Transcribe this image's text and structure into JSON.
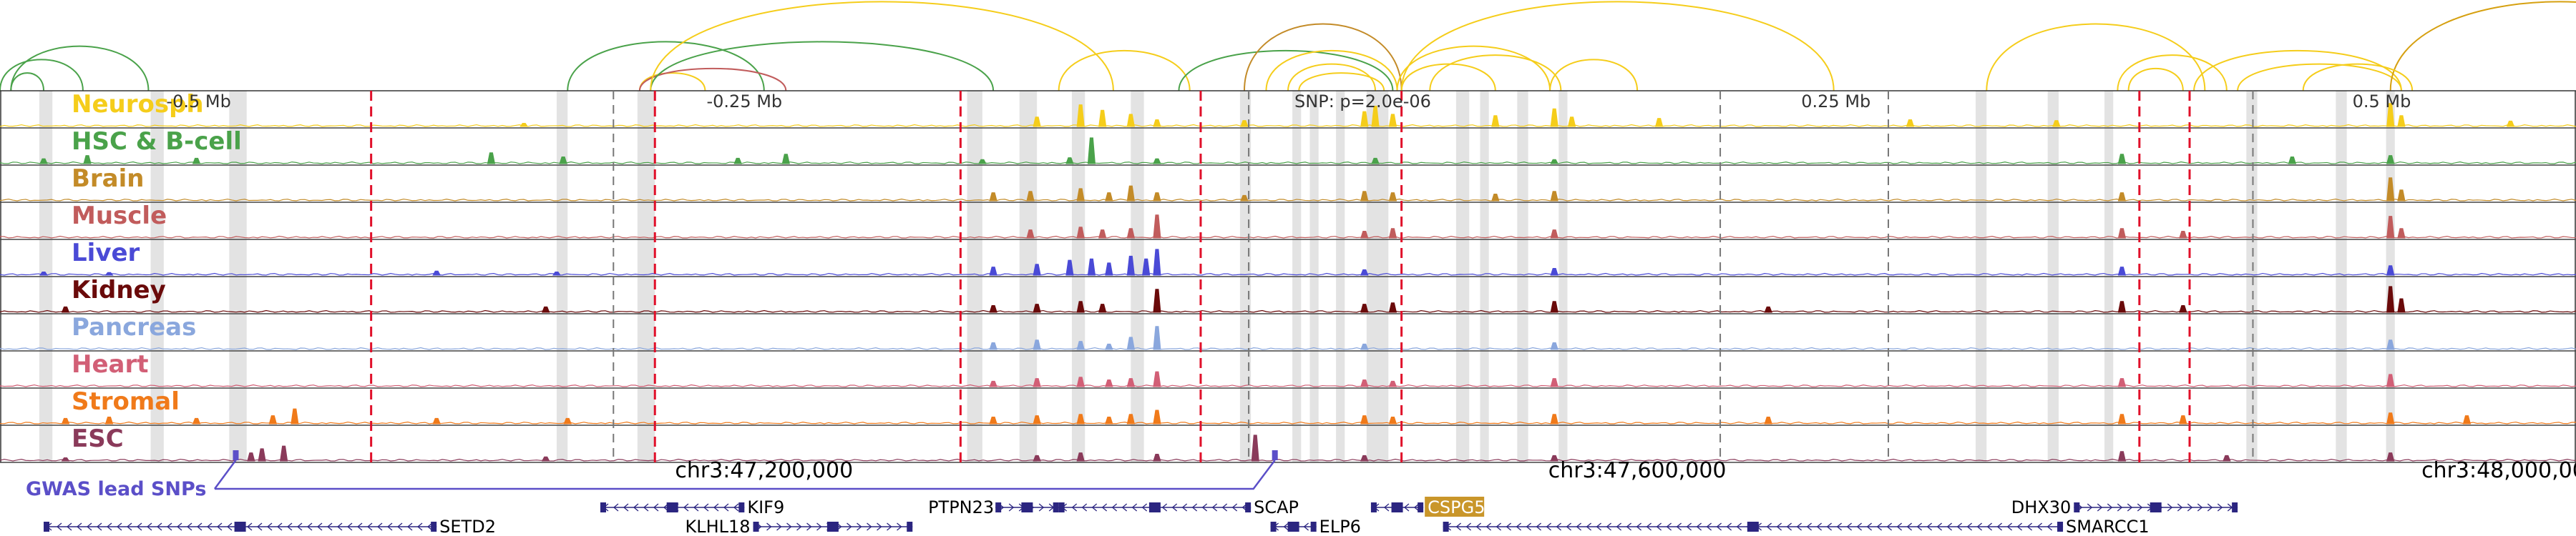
{
  "chart_data": {
    "type": "genome-browser",
    "title": "",
    "chromosome": "chr3",
    "x_range_bp": [
      46850000,
      48030000
    ],
    "x_unit": "bp",
    "center_snp": {
      "label": "SNP: p=2.0e-06",
      "position_bp": 47441000
    },
    "relative_ticks": [
      {
        "label": "-0.5 Mb",
        "position_bp": 46941000
      },
      {
        "label": "-0.25 Mb",
        "position_bp": 47191000
      },
      {
        "label": "0.25 Mb",
        "position_bp": 47691000
      },
      {
        "label": "0.5 Mb",
        "position_bp": 47941000
      }
    ],
    "coordinate_labels": [
      {
        "label": "chr3:47,200,000",
        "position_bp": 47200000
      },
      {
        "label": "chr3:47,600,000",
        "position_bp": 47600000
      },
      {
        "label": "chr3:48,000,000",
        "position_bp": 48000000
      }
    ],
    "tracks": [
      {
        "name": "Neurosph",
        "color": "#f5cd1b",
        "peaks": [
          [
            47090000,
            0.12
          ],
          [
            47325000,
            0.35
          ],
          [
            47345000,
            0.8
          ],
          [
            47355000,
            0.6
          ],
          [
            47368000,
            0.45
          ],
          [
            47380000,
            0.25
          ],
          [
            47420000,
            0.22
          ],
          [
            47475000,
            0.55
          ],
          [
            47480000,
            0.75
          ],
          [
            47488000,
            0.45
          ],
          [
            47535000,
            0.4
          ],
          [
            47562000,
            0.65
          ],
          [
            47570000,
            0.35
          ],
          [
            47610000,
            0.3
          ],
          [
            47725000,
            0.25
          ],
          [
            47792000,
            0.22
          ],
          [
            47945000,
            0.85
          ],
          [
            47950000,
            0.4
          ],
          [
            48000000,
            0.2
          ]
        ]
      },
      {
        "name": "HSC & B-cell",
        "color": "#4aa24a",
        "peaks": [
          [
            46870000,
            0.18
          ],
          [
            46890000,
            0.3
          ],
          [
            46940000,
            0.2
          ],
          [
            47075000,
            0.4
          ],
          [
            47108000,
            0.25
          ],
          [
            47188000,
            0.2
          ],
          [
            47210000,
            0.35
          ],
          [
            47300000,
            0.15
          ],
          [
            47340000,
            0.22
          ],
          [
            47350000,
            0.95
          ],
          [
            47380000,
            0.18
          ],
          [
            47480000,
            0.2
          ],
          [
            47562000,
            0.15
          ],
          [
            47822000,
            0.35
          ],
          [
            47900000,
            0.25
          ],
          [
            47945000,
            0.3
          ]
        ]
      },
      {
        "name": "Brain",
        "color": "#c38b28",
        "peaks": [
          [
            47305000,
            0.3
          ],
          [
            47322000,
            0.35
          ],
          [
            47345000,
            0.45
          ],
          [
            47358000,
            0.3
          ],
          [
            47368000,
            0.55
          ],
          [
            47380000,
            0.3
          ],
          [
            47420000,
            0.2
          ],
          [
            47475000,
            0.35
          ],
          [
            47488000,
            0.3
          ],
          [
            47535000,
            0.25
          ],
          [
            47562000,
            0.35
          ],
          [
            47822000,
            0.3
          ],
          [
            47945000,
            0.85
          ],
          [
            47950000,
            0.4
          ]
        ]
      },
      {
        "name": "Muscle",
        "color": "#c15c5c",
        "peaks": [
          [
            47322000,
            0.3
          ],
          [
            47345000,
            0.4
          ],
          [
            47355000,
            0.3
          ],
          [
            47368000,
            0.35
          ],
          [
            47380000,
            0.85
          ],
          [
            47475000,
            0.25
          ],
          [
            47488000,
            0.35
          ],
          [
            47562000,
            0.3
          ],
          [
            47822000,
            0.35
          ],
          [
            47850000,
            0.25
          ],
          [
            47945000,
            0.8
          ],
          [
            47950000,
            0.35
          ]
        ]
      },
      {
        "name": "Liver",
        "color": "#4a4ad6",
        "peaks": [
          [
            46870000,
            0.12
          ],
          [
            46900000,
            0.1
          ],
          [
            47050000,
            0.15
          ],
          [
            47105000,
            0.12
          ],
          [
            47305000,
            0.3
          ],
          [
            47325000,
            0.4
          ],
          [
            47340000,
            0.55
          ],
          [
            47350000,
            0.6
          ],
          [
            47358000,
            0.45
          ],
          [
            47368000,
            0.7
          ],
          [
            47375000,
            0.6
          ],
          [
            47380000,
            0.95
          ],
          [
            47475000,
            0.2
          ],
          [
            47562000,
            0.25
          ],
          [
            47822000,
            0.3
          ],
          [
            47945000,
            0.35
          ]
        ]
      },
      {
        "name": "Kidney",
        "color": "#6a0a0a",
        "peaks": [
          [
            46880000,
            0.2
          ],
          [
            47100000,
            0.2
          ],
          [
            47305000,
            0.25
          ],
          [
            47325000,
            0.3
          ],
          [
            47345000,
            0.4
          ],
          [
            47355000,
            0.3
          ],
          [
            47380000,
            0.85
          ],
          [
            47475000,
            0.3
          ],
          [
            47488000,
            0.35
          ],
          [
            47562000,
            0.4
          ],
          [
            47660000,
            0.2
          ],
          [
            47822000,
            0.4
          ],
          [
            47850000,
            0.25
          ],
          [
            47945000,
            0.95
          ],
          [
            47950000,
            0.5
          ]
        ]
      },
      {
        "name": "Pancreas",
        "color": "#8aa7dd",
        "peaks": [
          [
            47305000,
            0.25
          ],
          [
            47325000,
            0.35
          ],
          [
            47345000,
            0.3
          ],
          [
            47358000,
            0.2
          ],
          [
            47368000,
            0.45
          ],
          [
            47380000,
            0.85
          ],
          [
            47475000,
            0.2
          ],
          [
            47562000,
            0.25
          ],
          [
            47945000,
            0.35
          ]
        ]
      },
      {
        "name": "Heart",
        "color": "#d25f76",
        "peaks": [
          [
            47305000,
            0.2
          ],
          [
            47325000,
            0.3
          ],
          [
            47345000,
            0.35
          ],
          [
            47358000,
            0.25
          ],
          [
            47368000,
            0.3
          ],
          [
            47380000,
            0.55
          ],
          [
            47475000,
            0.25
          ],
          [
            47488000,
            0.2
          ],
          [
            47562000,
            0.3
          ],
          [
            47822000,
            0.3
          ],
          [
            47945000,
            0.45
          ]
        ]
      },
      {
        "name": "Stromal",
        "color": "#f07a1a",
        "peaks": [
          [
            46880000,
            0.2
          ],
          [
            46900000,
            0.25
          ],
          [
            46940000,
            0.2
          ],
          [
            46975000,
            0.3
          ],
          [
            46985000,
            0.55
          ],
          [
            47050000,
            0.2
          ],
          [
            47110000,
            0.2
          ],
          [
            47305000,
            0.25
          ],
          [
            47325000,
            0.3
          ],
          [
            47345000,
            0.35
          ],
          [
            47358000,
            0.25
          ],
          [
            47368000,
            0.35
          ],
          [
            47380000,
            0.5
          ],
          [
            47475000,
            0.3
          ],
          [
            47488000,
            0.25
          ],
          [
            47562000,
            0.35
          ],
          [
            47660000,
            0.25
          ],
          [
            47822000,
            0.35
          ],
          [
            47850000,
            0.3
          ],
          [
            47945000,
            0.4
          ],
          [
            47980000,
            0.3
          ]
        ]
      },
      {
        "name": "ESC",
        "color": "#8a3a5a",
        "peaks": [
          [
            46880000,
            0.12
          ],
          [
            46965000,
            0.3
          ],
          [
            46970000,
            0.45
          ],
          [
            46980000,
            0.55
          ],
          [
            47100000,
            0.15
          ],
          [
            47325000,
            0.2
          ],
          [
            47345000,
            0.3
          ],
          [
            47380000,
            0.25
          ],
          [
            47425000,
            0.95
          ],
          [
            47475000,
            0.2
          ],
          [
            47562000,
            0.2
          ],
          [
            47822000,
            0.35
          ],
          [
            47870000,
            0.2
          ],
          [
            47945000,
            0.3
          ]
        ]
      }
    ],
    "red_dashed_lines_bp": [
      47020000,
      47150000,
      47290000,
      47400000,
      47492000,
      47830000,
      47853000
    ],
    "gray_dashed_lines_bp": [
      47131000,
      47422000,
      47638000,
      47715000,
      47882000
    ],
    "highlight_regions_bp": [
      [
        46868000,
        46874000
      ],
      [
        46919000,
        46925000
      ],
      [
        46955000,
        46963000
      ],
      [
        47105000,
        47110000
      ],
      [
        47142000,
        47150000
      ],
      [
        47293000,
        47300000
      ],
      [
        47317000,
        47325000
      ],
      [
        47341000,
        47347000
      ],
      [
        47368000,
        47374000
      ],
      [
        47418000,
        47423000
      ],
      [
        47442000,
        47446000
      ],
      [
        47450000,
        47454000
      ],
      [
        47462000,
        47466000
      ],
      [
        47476000,
        47486000
      ],
      [
        47517000,
        47523000
      ],
      [
        47528000,
        47532000
      ],
      [
        47545000,
        47550000
      ],
      [
        47564000,
        47568000
      ],
      [
        47755000,
        47760000
      ],
      [
        47788000,
        47793000
      ],
      [
        47814000,
        47818000
      ],
      [
        47879000,
        47884000
      ],
      [
        47920000,
        47925000
      ],
      [
        47943000,
        47947000
      ]
    ],
    "arcs": [
      {
        "start": 46855000,
        "end": 46918000,
        "color": "#4aa24a",
        "height": 0.5
      },
      {
        "start": 46850000,
        "end": 46888000,
        "color": "#4aa24a",
        "height": 0.35
      },
      {
        "start": 46855000,
        "end": 46870000,
        "color": "#4aa24a",
        "height": 0.2
      },
      {
        "start": 47110000,
        "end": 47200000,
        "color": "#4aa24a",
        "height": 0.55
      },
      {
        "start": 47143000,
        "end": 47173000,
        "color": "#f5cd1b",
        "height": 0.2
      },
      {
        "start": 47143000,
        "end": 47210000,
        "color": "#c15c5c",
        "height": 0.25
      },
      {
        "start": 47148000,
        "end": 47305000,
        "color": "#4aa24a",
        "height": 0.55
      },
      {
        "start": 47148000,
        "end": 47360000,
        "color": "#f5cd1b",
        "height": 1.0
      },
      {
        "start": 47335000,
        "end": 47395000,
        "color": "#f5cd1b",
        "height": 0.45
      },
      {
        "start": 47390000,
        "end": 47488000,
        "color": "#4aa24a",
        "height": 0.45
      },
      {
        "start": 47420000,
        "end": 47492000,
        "color": "#c38b28",
        "height": 0.75
      },
      {
        "start": 47430000,
        "end": 47490000,
        "color": "#f5cd1b",
        "height": 0.45
      },
      {
        "start": 47440000,
        "end": 47480000,
        "color": "#f5cd1b",
        "height": 0.3
      },
      {
        "start": 47445000,
        "end": 47484000,
        "color": "#f5cd1b",
        "height": 0.2
      },
      {
        "start": 47490000,
        "end": 47560000,
        "color": "#f5cd1b",
        "height": 0.5
      },
      {
        "start": 47492000,
        "end": 47690000,
        "color": "#f5cd1b",
        "height": 1.0
      },
      {
        "start": 47492000,
        "end": 47535000,
        "color": "#f5cd1b",
        "height": 0.3
      },
      {
        "start": 47505000,
        "end": 47565000,
        "color": "#f5cd1b",
        "height": 0.4
      },
      {
        "start": 47560000,
        "end": 47600000,
        "color": "#f5cd1b",
        "height": 0.35
      },
      {
        "start": 47760000,
        "end": 47860000,
        "color": "#f5cd1b",
        "height": 0.75
      },
      {
        "start": 47820000,
        "end": 47870000,
        "color": "#f5cd1b",
        "height": 0.4
      },
      {
        "start": 47825000,
        "end": 47850000,
        "color": "#f5cd1b",
        "height": 0.25
      },
      {
        "start": 47855000,
        "end": 47950000,
        "color": "#f5cd1b",
        "height": 0.45
      },
      {
        "start": 47875000,
        "end": 47950000,
        "color": "#f5cd1b",
        "height": 0.3
      },
      {
        "start": 47945000,
        "end": 48100000,
        "color": "#d6a010",
        "height": 1.0
      },
      {
        "start": 47905000,
        "end": 47955000,
        "color": "#f5cd1b",
        "height": 0.3
      }
    ],
    "gwas": {
      "label": "GWAS lead SNPs",
      "color": "#5b4fc8",
      "snps_bp": [
        46958000,
        47434000
      ]
    },
    "genes": [
      {
        "name": "SETD2",
        "start": 46870000,
        "end": 47050000,
        "strand": "-",
        "row": 2,
        "highlight": false
      },
      {
        "name": "KIF9",
        "start": 47125000,
        "end": 47191000,
        "strand": "-",
        "row": 1,
        "highlight": false
      },
      {
        "name": "KLHL18",
        "start": 47195000,
        "end": 47268000,
        "strand": "+",
        "row": 2,
        "highlight": false
      },
      {
        "name": "PTPN23",
        "start": 47306000,
        "end": 47335000,
        "strand": "+",
        "row": 1,
        "highlight": false
      },
      {
        "name": "SCAP",
        "start": 47335000,
        "end": 47423000,
        "strand": "-",
        "row": 1,
        "highlight": false
      },
      {
        "name": "ELP6",
        "start": 47432000,
        "end": 47453000,
        "strand": "-",
        "row": 2,
        "highlight": false
      },
      {
        "name": "CSPG5",
        "start": 47478000,
        "end": 47502000,
        "strand": "-",
        "row": 1,
        "highlight": true
      },
      {
        "name": "DHX30",
        "start": 47800000,
        "end": 47875000,
        "strand": "+",
        "row": 1,
        "highlight": false
      },
      {
        "name": "SMARCC1",
        "start": 47511000,
        "end": 47795000,
        "strand": "-",
        "row": 2,
        "highlight": false
      }
    ],
    "gene_highlight_color": "#c9962a"
  }
}
